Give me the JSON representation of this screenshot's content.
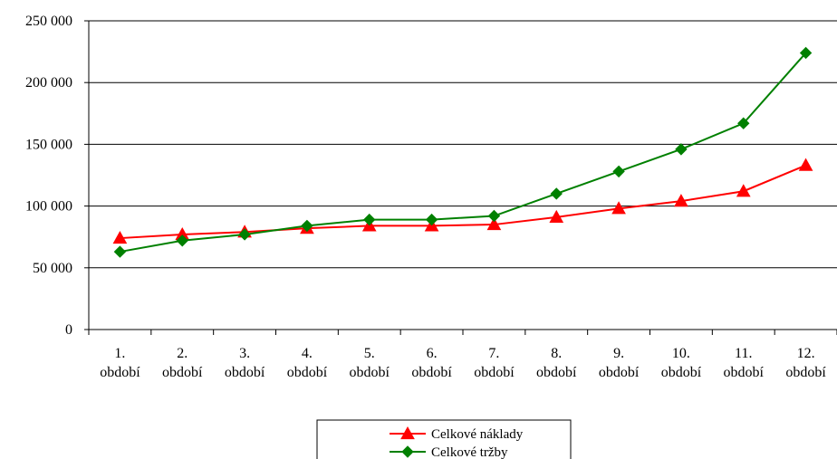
{
  "chart_data": {
    "type": "line",
    "categories": [
      [
        "1.",
        "období"
      ],
      [
        "2.",
        "období"
      ],
      [
        "3.",
        "období"
      ],
      [
        "4.",
        "období"
      ],
      [
        "5.",
        "období"
      ],
      [
        "6.",
        "období"
      ],
      [
        "7.",
        "období"
      ],
      [
        "8.",
        "období"
      ],
      [
        "9.",
        "období"
      ],
      [
        "10.",
        "období"
      ],
      [
        "11.",
        "období"
      ],
      [
        "12.",
        "období"
      ]
    ],
    "y_ticks": [
      0,
      50000,
      100000,
      150000,
      200000,
      250000
    ],
    "y_tick_labels": [
      "0",
      "50 000",
      "100 000",
      "150 000",
      "200 000",
      "250 000"
    ],
    "ylim": [
      0,
      250000
    ],
    "grid": true,
    "legend_position": "bottom",
    "series": [
      {
        "name": "Celkové náklady",
        "color": "#ff0000",
        "marker": "triangle",
        "values": [
          74000,
          77000,
          79000,
          82000,
          84000,
          84000,
          85000,
          91000,
          98000,
          104000,
          112000,
          133000
        ]
      },
      {
        "name": "Celkové tržby",
        "color": "#008000",
        "marker": "diamond",
        "values": [
          63000,
          72000,
          77000,
          84000,
          89000,
          89000,
          92000,
          110000,
          128000,
          146000,
          167000,
          224000
        ]
      }
    ]
  }
}
